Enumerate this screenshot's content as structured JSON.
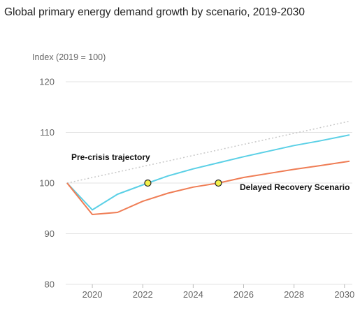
{
  "chart_data": {
    "type": "line",
    "title": "Global primary energy demand growth by scenario, 2019-2030",
    "ylabel": "Index (2019 = 100)",
    "xlim": [
      2019,
      2030.2
    ],
    "ylim": [
      80,
      120
    ],
    "x_ticks": [
      "2020",
      "2022",
      "2024",
      "2026",
      "2028",
      "2030"
    ],
    "y_ticks": [
      "80",
      "90",
      "100",
      "110",
      "120"
    ],
    "grid": true,
    "series": [
      {
        "name": "Pre-crisis trajectory",
        "color": "#c8c8c8",
        "style": "dotted",
        "x": [
          2019,
          2030.2
        ],
        "y": [
          100,
          112.2
        ]
      },
      {
        "name": "",
        "color": "#5bd0e6",
        "style": "solid",
        "x": [
          2019,
          2020,
          2021,
          2022.2,
          2023,
          2024,
          2025,
          2026,
          2027,
          2028,
          2029,
          2030.2
        ],
        "y": [
          100,
          94.7,
          97.8,
          100,
          101.4,
          102.8,
          104.0,
          105.2,
          106.3,
          107.4,
          108.3,
          109.5
        ]
      },
      {
        "name": "Delayed Recovery Scenario",
        "color": "#ef7d55",
        "style": "solid",
        "x": [
          2019,
          2020,
          2021,
          2022,
          2023,
          2024,
          2025,
          2026,
          2027,
          2028,
          2029,
          2030.2
        ],
        "y": [
          100,
          93.8,
          94.2,
          96.4,
          98.0,
          99.2,
          100.0,
          101.1,
          101.9,
          102.7,
          103.4,
          104.3
        ]
      }
    ],
    "markers": [
      {
        "x": 2022.2,
        "y": 100,
        "color": "#f3f04a"
      },
      {
        "x": 2025,
        "y": 100,
        "color": "#f3f04a"
      }
    ],
    "annotations": [
      "Pre-crisis trajectory",
      "Delayed Recovery Scenario"
    ]
  }
}
